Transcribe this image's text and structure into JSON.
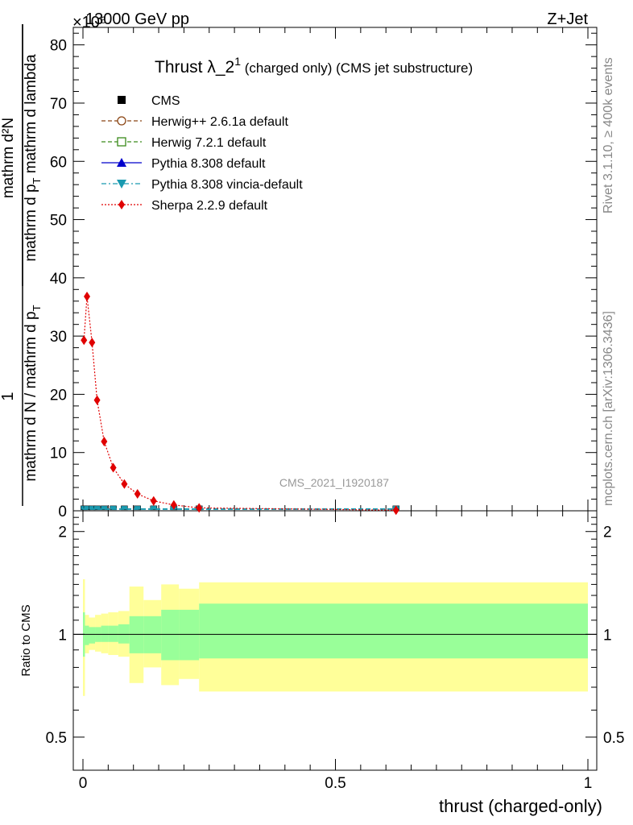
{
  "header": {
    "left": "13000 GeV pp",
    "right": "Z+Jet",
    "exponent": "×10⁶"
  },
  "title": {
    "main": "Thrust λ_2",
    "sup": "1",
    "sub": " (charged only) (CMS jet substructure)"
  },
  "side_labels": {
    "rivet": "Rivet 3.1.10, ≥ 400k events",
    "mcplots": "mcplots.cern.ch [arXiv:1306.3436]"
  },
  "watermark": "CMS_2021_I1920187",
  "ylabel_main": {
    "numerator": "1",
    "denominator": "mathrm d N / mathrm d p",
    "denominator_sub": "T",
    "numerator2": "mathrm d²N",
    "denominator2": "mathrm d p",
    "denominator2_sub": "T",
    "denominator2_tail": " mathrm d lambda"
  },
  "ylabel_ratio": "Ratio to CMS",
  "xlabel": "thrust (charged-only)",
  "legend": [
    {
      "label": "CMS",
      "color": "#000000",
      "marker": "square-filled",
      "line": "none"
    },
    {
      "label": "Herwig++ 2.6.1a default",
      "color": "#8B4513",
      "marker": "circle-open",
      "line": "dashed"
    },
    {
      "label": "Herwig 7.2.1 default",
      "color": "#3a8a1a",
      "marker": "square-open",
      "line": "dashed"
    },
    {
      "label": "Pythia 8.308 default",
      "color": "#0000cc",
      "marker": "triangle-up",
      "line": "solid"
    },
    {
      "label": "Pythia 8.308 vincia-default",
      "color": "#1a9ab0",
      "marker": "triangle-down",
      "line": "dashdot"
    },
    {
      "label": "Sherpa 2.2.9 default",
      "color": "#e00000",
      "marker": "diamond",
      "line": "dotted"
    }
  ],
  "chart_data": [
    {
      "type": "line",
      "panel": "main",
      "xlim": [
        0,
        1
      ],
      "ylim": [
        0,
        83
      ],
      "y_scale_factor": "1e6",
      "y_ticks": [
        0,
        10,
        20,
        30,
        40,
        50,
        60,
        70,
        80
      ],
      "series": [
        {
          "name": "Sherpa 2.2.9 default",
          "x": [
            0.002,
            0.008,
            0.018,
            0.028,
            0.042,
            0.06,
            0.082,
            0.108,
            0.14,
            0.18,
            0.23,
            0.62
          ],
          "y": [
            29.3,
            36.8,
            28.9,
            19.0,
            11.9,
            7.4,
            4.6,
            2.9,
            1.7,
            1.0,
            0.5,
            0.1
          ]
        },
        {
          "name": "CMS",
          "x": [
            0.002,
            0.008,
            0.018,
            0.028,
            0.042,
            0.06,
            0.082,
            0.108,
            0.14,
            0.18,
            0.23,
            0.62
          ],
          "y": [
            0.3,
            0.3,
            0.3,
            0.3,
            0.3,
            0.3,
            0.3,
            0.3,
            0.3,
            0.3,
            0.3,
            0.3
          ]
        }
      ]
    },
    {
      "type": "area",
      "panel": "ratio",
      "xlim": [
        0,
        1
      ],
      "ylim": [
        0.4,
        2.3
      ],
      "y_scale": "log",
      "y_ticks": [
        0.5,
        1,
        2
      ],
      "bins": [
        {
          "x0": 0.0,
          "x1": 0.004,
          "g_lo": 0.86,
          "g_hi": 1.16,
          "y_lo": 0.66,
          "y_hi": 1.45
        },
        {
          "x0": 0.004,
          "x1": 0.012,
          "g_lo": 0.93,
          "g_hi": 1.06,
          "y_lo": 0.88,
          "y_hi": 1.14
        },
        {
          "x0": 0.012,
          "x1": 0.024,
          "g_lo": 0.94,
          "g_hi": 1.05,
          "y_lo": 0.9,
          "y_hi": 1.12
        },
        {
          "x0": 0.024,
          "x1": 0.036,
          "g_lo": 0.95,
          "g_hi": 1.05,
          "y_lo": 0.89,
          "y_hi": 1.14
        },
        {
          "x0": 0.036,
          "x1": 0.05,
          "g_lo": 0.95,
          "g_hi": 1.06,
          "y_lo": 0.88,
          "y_hi": 1.15
        },
        {
          "x0": 0.05,
          "x1": 0.07,
          "g_lo": 0.95,
          "g_hi": 1.06,
          "y_lo": 0.87,
          "y_hi": 1.16
        },
        {
          "x0": 0.07,
          "x1": 0.092,
          "g_lo": 0.94,
          "g_hi": 1.07,
          "y_lo": 0.86,
          "y_hi": 1.17
        },
        {
          "x0": 0.092,
          "x1": 0.12,
          "g_lo": 0.88,
          "g_hi": 1.13,
          "y_lo": 0.72,
          "y_hi": 1.38
        },
        {
          "x0": 0.12,
          "x1": 0.155,
          "g_lo": 0.88,
          "g_hi": 1.13,
          "y_lo": 0.8,
          "y_hi": 1.26
        },
        {
          "x0": 0.155,
          "x1": 0.19,
          "g_lo": 0.84,
          "g_hi": 1.18,
          "y_lo": 0.71,
          "y_hi": 1.4
        },
        {
          "x0": 0.19,
          "x1": 0.23,
          "g_lo": 0.84,
          "g_hi": 1.18,
          "y_lo": 0.74,
          "y_hi": 1.36
        },
        {
          "x0": 0.23,
          "x1": 1.0,
          "g_lo": 0.85,
          "g_hi": 1.23,
          "y_lo": 0.68,
          "y_hi": 1.42
        }
      ],
      "reference_line": 1.0
    }
  ],
  "x_ticks": [
    {
      "value": 0,
      "label": "0"
    },
    {
      "value": 0.5,
      "label": "0.5"
    },
    {
      "value": 1,
      "label": "1"
    }
  ]
}
